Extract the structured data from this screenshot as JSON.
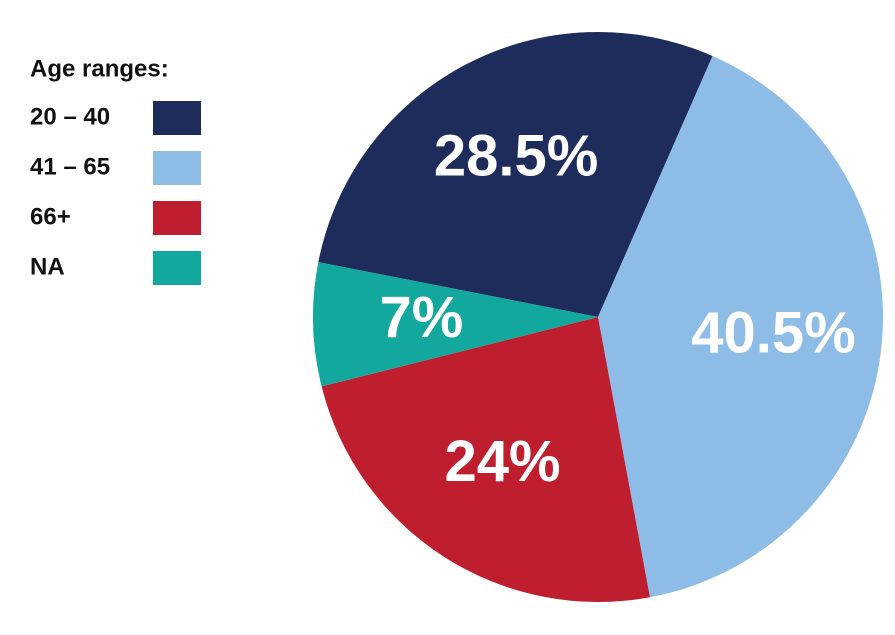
{
  "chart_data": {
    "type": "pie",
    "legend_title": "Age ranges:",
    "categories": [
      "20 – 40",
      "41 – 65",
      "66+",
      "NA"
    ],
    "values": [
      28.5,
      40.5,
      24,
      7
    ],
    "value_labels": [
      "28.5%",
      "40.5%",
      "24%",
      "7%"
    ],
    "colors": [
      "#1d2c5b",
      "#8dbde6",
      "#be1e2d",
      "#12a89d"
    ],
    "legend": "top-left"
  }
}
